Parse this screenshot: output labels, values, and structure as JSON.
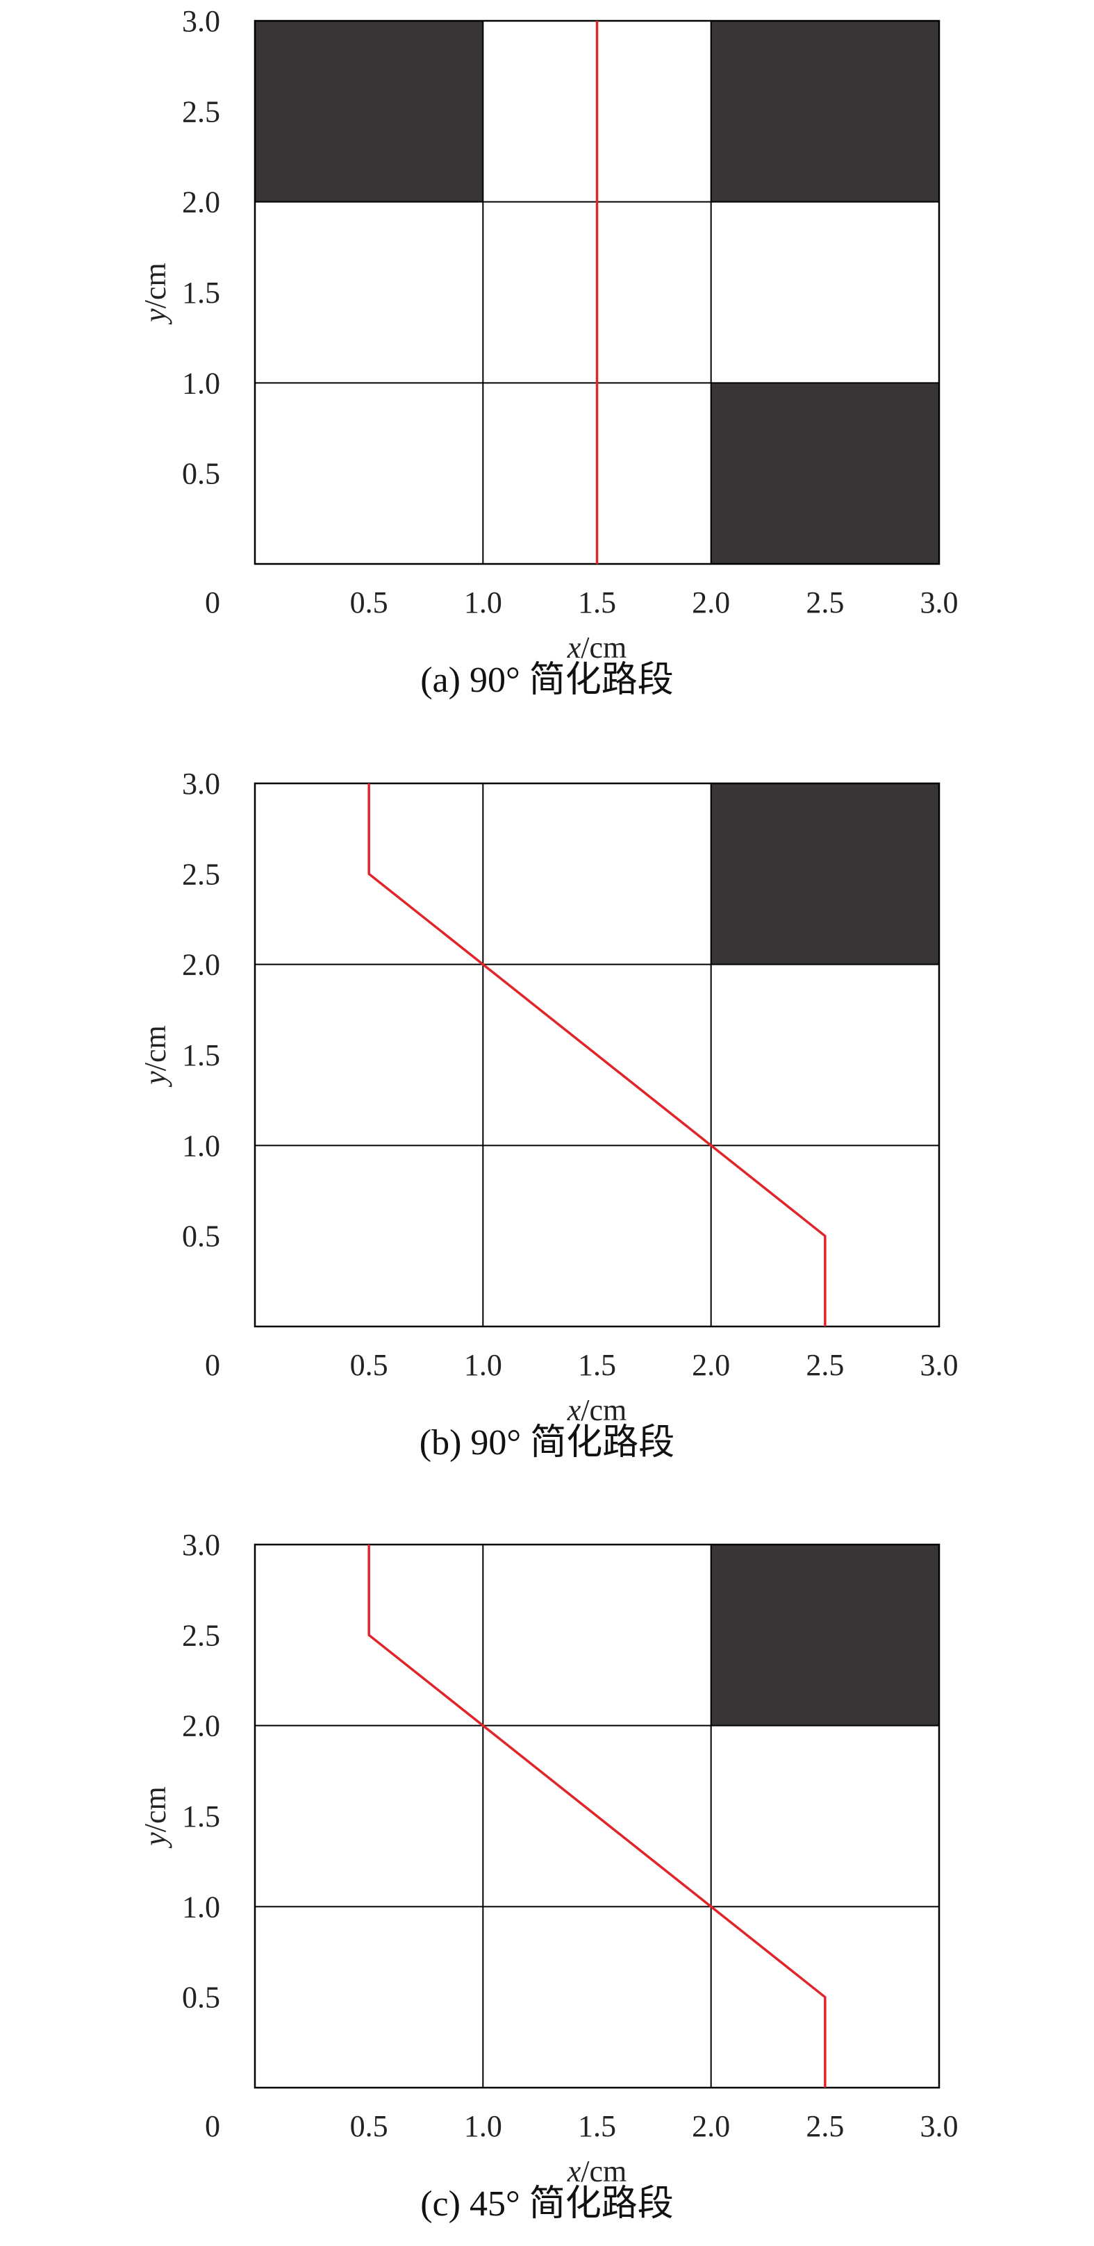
{
  "colors": {
    "blocked": "#393536",
    "path": "#e0242a",
    "grid": "#000000",
    "background": "#ffffff"
  },
  "chart_data": [
    {
      "type": "line",
      "caption": "(a) 90° 简化路段",
      "xlabel_var": "x",
      "xlabel_unit": "/cm",
      "ylabel_var": "y",
      "ylabel_unit": "/cm",
      "xlim": [
        0,
        3.0
      ],
      "ylim": [
        0,
        3.0
      ],
      "origin_label": "0",
      "xticks": [
        "0.5",
        "1.0",
        "1.5",
        "2.0",
        "2.5",
        "3.0"
      ],
      "yticks": [
        "0.5",
        "1.0",
        "1.5",
        "2.0",
        "2.5",
        "3.0"
      ],
      "grid_lines": [
        1.0,
        2.0
      ],
      "blocked_cells": [
        [
          0,
          2
        ],
        [
          2,
          2
        ],
        [
          2,
          0
        ]
      ],
      "series": [
        {
          "x": [
            1.5,
            1.5
          ],
          "y": [
            0,
            3.0
          ]
        }
      ]
    },
    {
      "type": "line",
      "caption": "(b) 90° 简化路段",
      "xlabel_var": "x",
      "xlabel_unit": "/cm",
      "ylabel_var": "y",
      "ylabel_unit": "/cm",
      "xlim": [
        0,
        3.0
      ],
      "ylim": [
        0,
        3.0
      ],
      "origin_label": "0",
      "xticks": [
        "0.5",
        "1.0",
        "1.5",
        "2.0",
        "2.5",
        "3.0"
      ],
      "yticks": [
        "0.5",
        "1.0",
        "1.5",
        "2.0",
        "2.5",
        "3.0"
      ],
      "grid_lines": [
        1.0,
        2.0
      ],
      "blocked_cells": [
        [
          2,
          2
        ]
      ],
      "series": [
        {
          "x": [
            0.5,
            0.5,
            2.5,
            2.5
          ],
          "y": [
            3.0,
            2.5,
            0.5,
            0
          ]
        }
      ]
    },
    {
      "type": "line",
      "caption": "(c) 45° 简化路段",
      "xlabel_var": "x",
      "xlabel_unit": "/cm",
      "ylabel_var": "y",
      "ylabel_unit": "/cm",
      "xlim": [
        0,
        3.0
      ],
      "ylim": [
        0,
        3.0
      ],
      "origin_label": "0",
      "xticks": [
        "0.5",
        "1.0",
        "1.5",
        "2.0",
        "2.5",
        "3.0"
      ],
      "yticks": [
        "0.5",
        "1.0",
        "1.5",
        "2.0",
        "2.5",
        "3.0"
      ],
      "grid_lines": [
        1.0,
        2.0
      ],
      "blocked_cells": [
        [
          2,
          2
        ]
      ],
      "series": [
        {
          "x": [
            0.5,
            0.5,
            2.5,
            2.5
          ],
          "y": [
            3.0,
            2.5,
            0.5,
            0
          ]
        }
      ]
    }
  ]
}
